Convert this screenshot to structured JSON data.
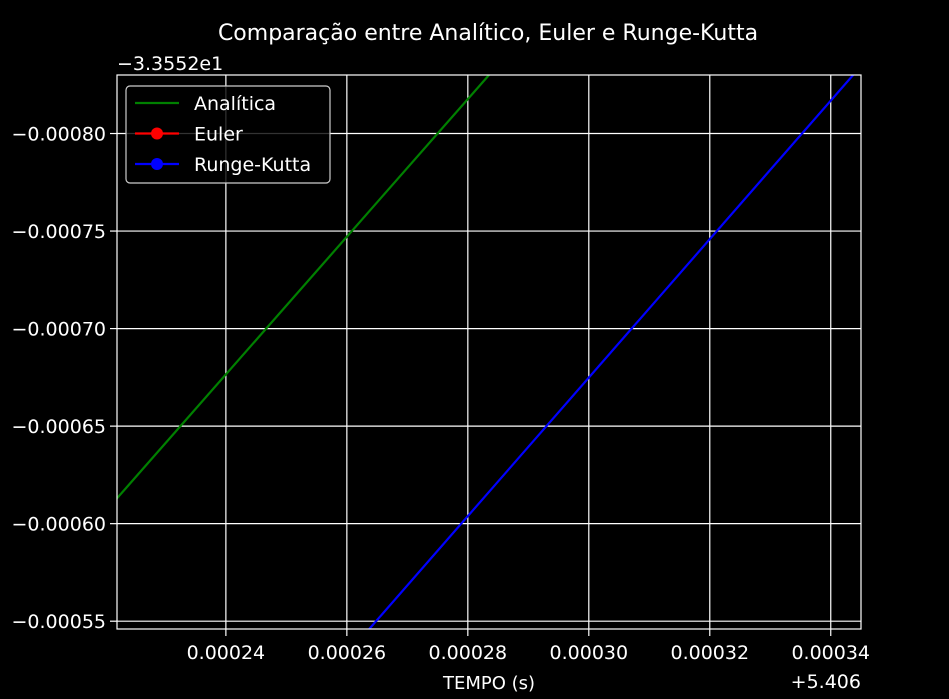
{
  "chart_data": {
    "type": "line",
    "title": "Comparação entre Analítico, Euler e Runge-Kutta",
    "xlabel": "TEMPO (s)",
    "ylabel": "",
    "x_offset_label": "+5.406",
    "y_offset_label": "−3.3552e1",
    "xlim": [
      0.000222,
      0.000345
    ],
    "ylim": [
      -0.000546,
      -0.00083
    ],
    "x_ticks": [
      0.00024,
      0.00026,
      0.00028,
      0.0003,
      0.00032,
      0.00034
    ],
    "x_tick_labels": [
      "0.00024",
      "0.00026",
      "0.00028",
      "0.00030",
      "0.00032",
      "0.00034"
    ],
    "y_ticks": [
      -0.0008,
      -0.00075,
      -0.0007,
      -0.00065,
      -0.0006,
      -0.00055
    ],
    "y_tick_labels": [
      "−0.00080",
      "−0.00075",
      "−0.00070",
      "−0.00065",
      "−0.00060",
      "−0.00055"
    ],
    "grid": true,
    "legend_position": "top-left",
    "series": [
      {
        "name": "Analítica",
        "color": "#008000",
        "marker": "none",
        "x": [
          0.000222,
          0.0002835
        ],
        "y": [
          -0.000613,
          -0.00083
        ]
      },
      {
        "name": "Euler",
        "color": "#ff0000",
        "marker": "circle",
        "x": [],
        "y": []
      },
      {
        "name": "Runge-Kutta",
        "color": "#0000ff",
        "marker": "circle",
        "x": [
          0.0002637,
          0.0003437
        ],
        "y": [
          -0.000546,
          -0.00083
        ]
      }
    ]
  }
}
